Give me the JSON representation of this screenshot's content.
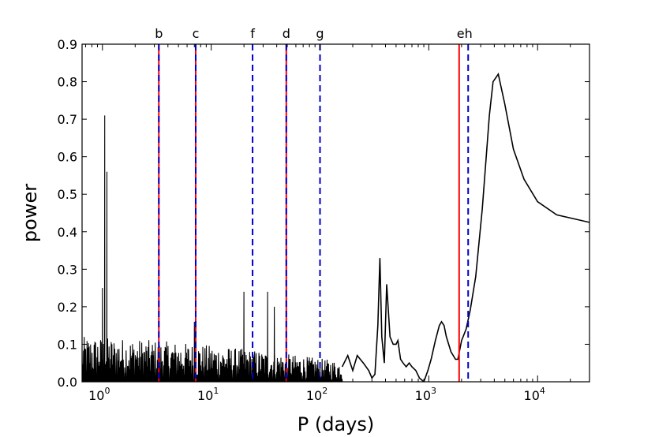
{
  "chart_data": {
    "type": "line",
    "title": "",
    "xlabel": "P (days)",
    "ylabel": "power",
    "xscale": "log",
    "xlim": [
      0.65,
      30000
    ],
    "ylim": [
      0.0,
      0.9
    ],
    "grid": false,
    "legend": "none",
    "x_ticks": [
      {
        "value": 1,
        "base": "10",
        "exp": "0"
      },
      {
        "value": 10,
        "base": "10",
        "exp": "1"
      },
      {
        "value": 100,
        "base": "10",
        "exp": "2"
      },
      {
        "value": 1000,
        "base": "10",
        "exp": "3"
      },
      {
        "value": 10000,
        "base": "10",
        "exp": "4"
      }
    ],
    "y_ticks": [
      "0.0",
      "0.1",
      "0.2",
      "0.3",
      "0.4",
      "0.5",
      "0.6",
      "0.7",
      "0.8",
      "0.9"
    ],
    "periodogram": {
      "color": "#000000",
      "noise_region": {
        "x_start": 0.65,
        "x_end": 160,
        "typical_max": 0.12
      },
      "peaks": [
        {
          "x": 1.0,
          "y": 0.25
        },
        {
          "x": 1.05,
          "y": 0.71
        },
        {
          "x": 1.1,
          "y": 0.56
        },
        {
          "x": 7.0,
          "y": 0.16
        },
        {
          "x": 20,
          "y": 0.24
        },
        {
          "x": 33,
          "y": 0.24
        },
        {
          "x": 38,
          "y": 0.2
        }
      ],
      "smooth_curve": [
        [
          160,
          0.04
        ],
        [
          180,
          0.07
        ],
        [
          200,
          0.03
        ],
        [
          220,
          0.07
        ],
        [
          250,
          0.05
        ],
        [
          280,
          0.03
        ],
        [
          300,
          0.01
        ],
        [
          320,
          0.02
        ],
        [
          340,
          0.15
        ],
        [
          355,
          0.33
        ],
        [
          370,
          0.12
        ],
        [
          390,
          0.05
        ],
        [
          410,
          0.26
        ],
        [
          440,
          0.12
        ],
        [
          470,
          0.1
        ],
        [
          500,
          0.1
        ],
        [
          520,
          0.11
        ],
        [
          550,
          0.06
        ],
        [
          580,
          0.05
        ],
        [
          620,
          0.04
        ],
        [
          660,
          0.05
        ],
        [
          700,
          0.04
        ],
        [
          760,
          0.03
        ],
        [
          820,
          0.01
        ],
        [
          900,
          0.0
        ],
        [
          980,
          0.03
        ],
        [
          1050,
          0.06
        ],
        [
          1150,
          0.11
        ],
        [
          1250,
          0.15
        ],
        [
          1310,
          0.16
        ],
        [
          1380,
          0.15
        ],
        [
          1450,
          0.12
        ],
        [
          1600,
          0.08
        ],
        [
          1760,
          0.06
        ],
        [
          1850,
          0.06
        ],
        [
          2000,
          0.11
        ],
        [
          2200,
          0.14
        ],
        [
          2400,
          0.19
        ],
        [
          2700,
          0.28
        ],
        [
          3100,
          0.46
        ],
        [
          3600,
          0.71
        ],
        [
          3900,
          0.8
        ],
        [
          4350,
          0.82
        ],
        [
          5000,
          0.74
        ],
        [
          6000,
          0.62
        ],
        [
          7500,
          0.54
        ],
        [
          10000,
          0.48
        ],
        [
          15000,
          0.445
        ],
        [
          30000,
          0.425
        ]
      ]
    },
    "planet_markers": [
      {
        "label": "b",
        "x": 3.3,
        "fitted": true,
        "known": true
      },
      {
        "label": "c",
        "x": 7.2,
        "fitted": true,
        "known": true
      },
      {
        "label": "f",
        "x": 24,
        "fitted": false,
        "known": true
      },
      {
        "label": "d",
        "x": 49,
        "fitted": true,
        "known": true
      },
      {
        "label": "g",
        "x": 100,
        "fitted": false,
        "known": true
      },
      {
        "label": "eh",
        "x": 1900,
        "fitted": true,
        "known": false
      },
      {
        "label": "",
        "x": 2300,
        "fitted": false,
        "known": true
      }
    ],
    "colors": {
      "curve": "#000000",
      "fitted_line": "#ff0000",
      "known_line": "#0000cc",
      "axes": "#000000"
    }
  }
}
